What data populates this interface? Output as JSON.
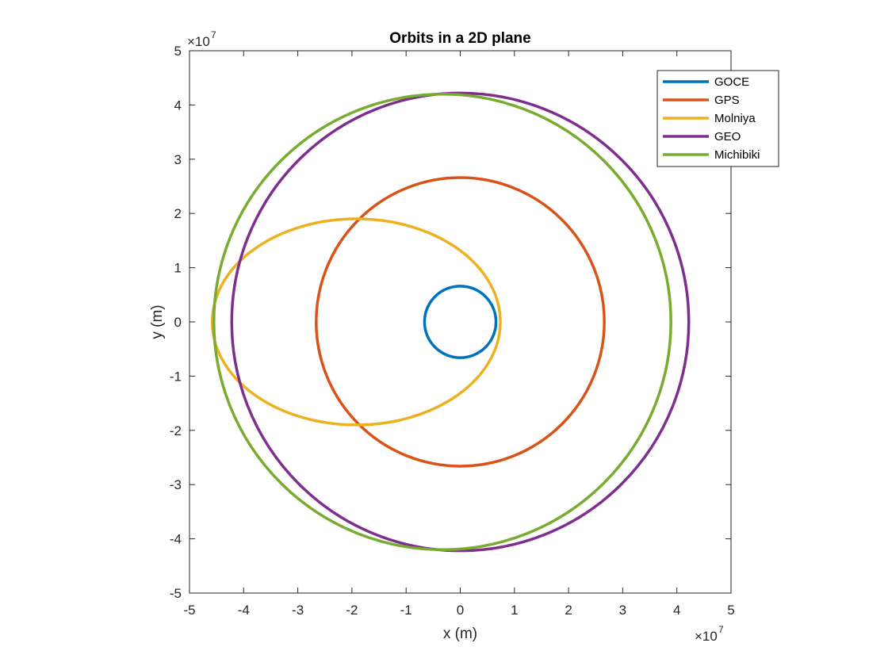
{
  "chart_data": {
    "type": "line",
    "title": "Orbits in a 2D plane",
    "xlabel": "x (m)",
    "ylabel": "y (m)",
    "xlim": [
      -5,
      5
    ],
    "ylim": [
      -5,
      5
    ],
    "xticks": [
      -5,
      -4,
      -3,
      -2,
      -1,
      0,
      1,
      2,
      3,
      4,
      5
    ],
    "yticks": [
      -5,
      -4,
      -3,
      -2,
      -1,
      0,
      1,
      2,
      3,
      4,
      5
    ],
    "x_multiplier": {
      "base": "×10",
      "exponent": "7"
    },
    "y_multiplier": {
      "base": "×10",
      "exponent": "7"
    },
    "grid": false,
    "legend_position": "top-right",
    "series": [
      {
        "name": "GOCE",
        "color": "#0072BD",
        "shape": "ellipse",
        "center": [
          0,
          0
        ],
        "radius_x": 0.66,
        "radius_y": 0.66
      },
      {
        "name": "GPS",
        "color": "#D95319",
        "shape": "ellipse",
        "center": [
          0,
          0
        ],
        "radius_x": 2.66,
        "radius_y": 2.66
      },
      {
        "name": "Molniya",
        "color": "#EDB120",
        "shape": "ellipse",
        "center": [
          -1.92,
          0
        ],
        "radius_x": 2.66,
        "radius_y": 1.9
      },
      {
        "name": "GEO",
        "color": "#7E2F8E",
        "shape": "ellipse",
        "center": [
          0,
          0
        ],
        "radius_x": 4.22,
        "radius_y": 4.22
      },
      {
        "name": "Michibiki",
        "color": "#77AC30",
        "shape": "ellipse",
        "center": [
          -0.33,
          0
        ],
        "radius_x": 4.22,
        "radius_y": 4.2
      }
    ]
  }
}
